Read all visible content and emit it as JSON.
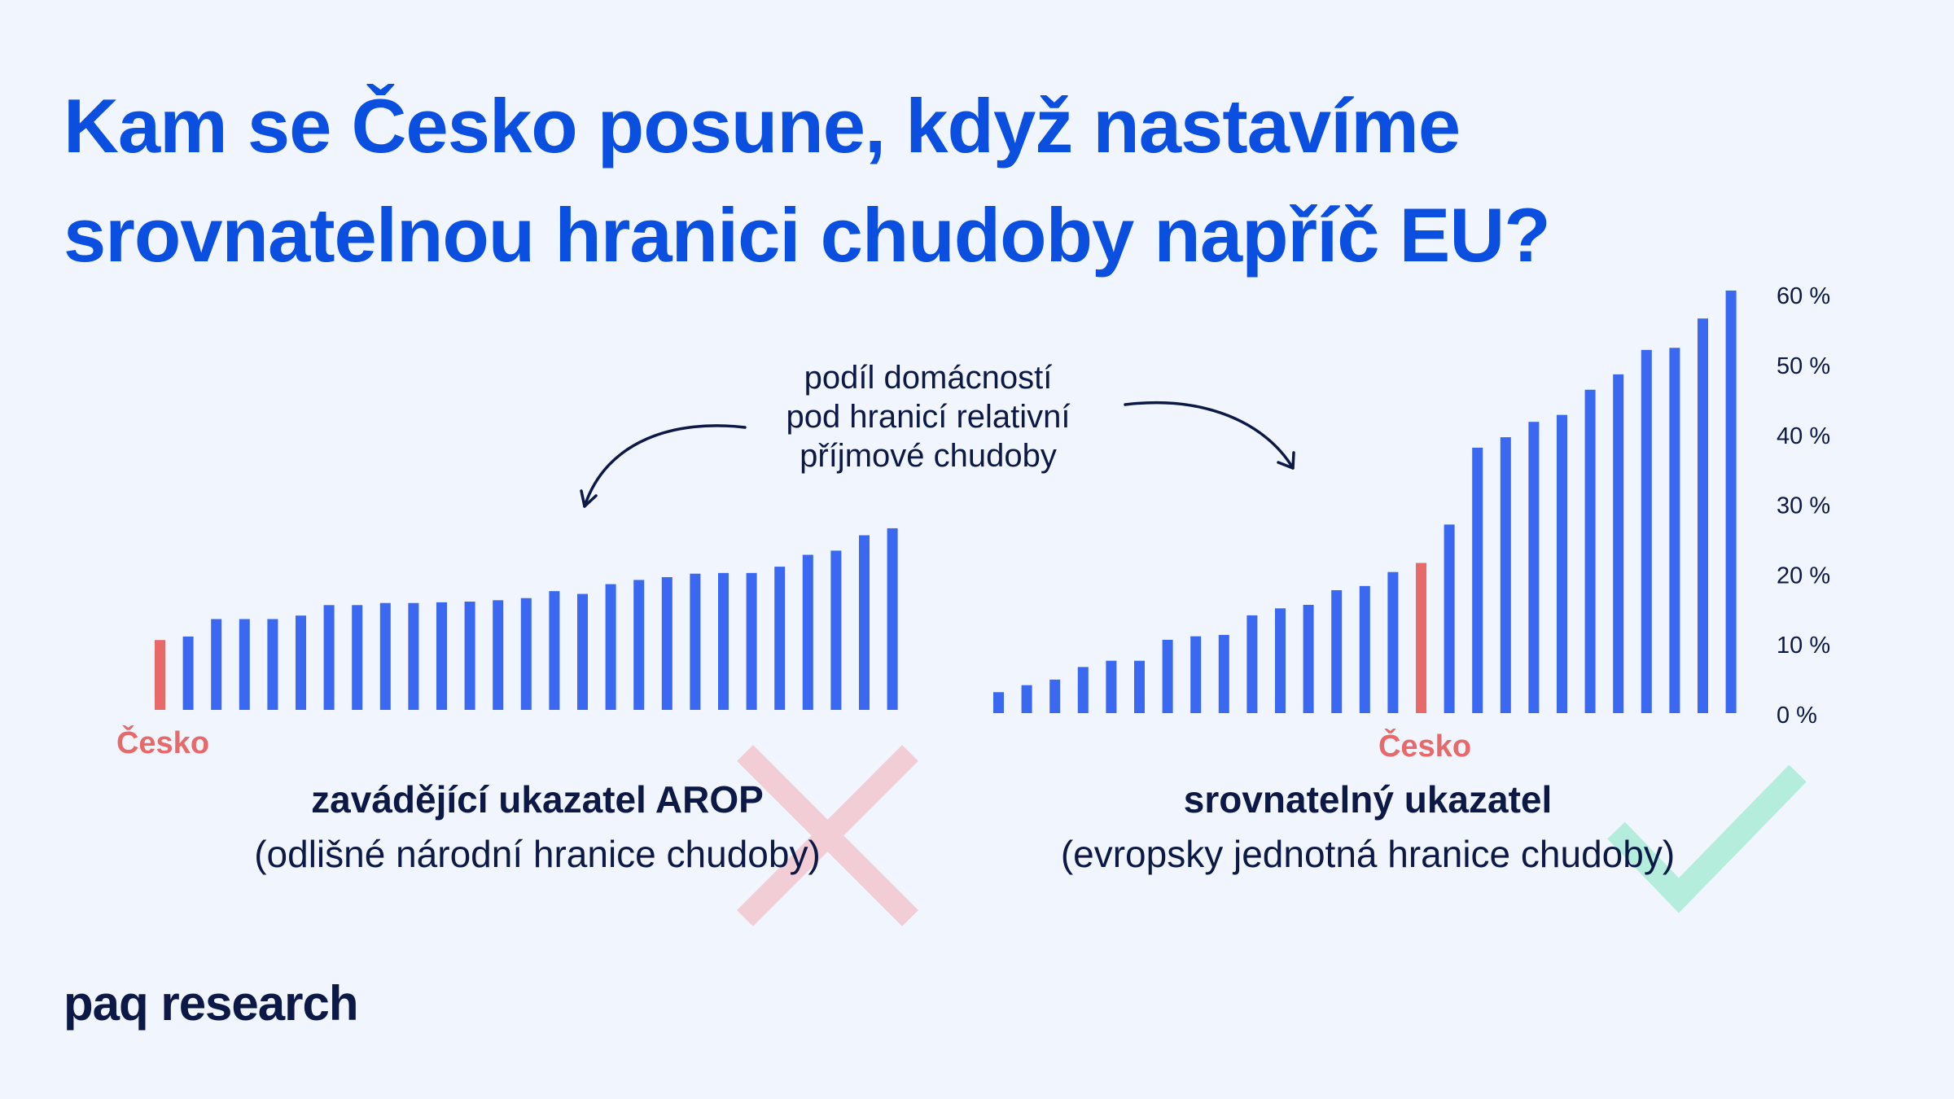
{
  "title": {
    "line1": "Kam se Česko posune, když nastavíme",
    "line2": "srovnatelnou hranici chudoby napříč EU?"
  },
  "annotation": {
    "line1": "podíl domácností",
    "line2": "pod hranicí relativní",
    "line3": "příjmové chudoby"
  },
  "colors": {
    "bar": "#3b68f0",
    "highlight": "#e8696a",
    "title": "#0a4fe0",
    "text": "#0c1845",
    "cross": "#f2cdd6",
    "check": "#b4eddb",
    "background": "#f1f6fe"
  },
  "icons": {
    "left": "cross-icon",
    "right": "check-icon"
  },
  "chart_data": [
    {
      "type": "bar",
      "values": [
        10,
        10.5,
        13,
        13,
        13,
        13.5,
        15,
        15,
        15.3,
        15.3,
        15.4,
        15.5,
        15.7,
        16,
        17,
        16.6,
        18,
        18.6,
        19,
        19.5,
        19.6,
        19.6,
        20.5,
        22.2,
        22.8,
        25,
        26
      ],
      "highlight_index": 0,
      "highlight_label": "Česko",
      "caption_title": "zavádějící ukazatel AROP",
      "caption_subtitle": "(odlišné národní hranice chudoby)",
      "ylim": [
        0,
        60
      ]
    },
    {
      "type": "bar",
      "values": [
        3,
        4,
        4.8,
        6.6,
        7.5,
        7.5,
        10.5,
        11,
        11.2,
        14,
        15,
        15.5,
        17.6,
        18.2,
        20.2,
        21.5,
        27,
        38,
        39.5,
        41.7,
        42.7,
        46.3,
        48.5,
        52,
        52.3,
        56.5,
        60.5
      ],
      "highlight_index": 15,
      "highlight_label": "Česko",
      "caption_title": "srovnatelný ukazatel",
      "caption_subtitle": "(evropsky jednotná hranice chudoby)",
      "ylim": [
        0,
        60
      ],
      "yticks": [
        "0 %",
        "10 %",
        "20 %",
        "30 %",
        "40 %",
        "50 %",
        "60 %"
      ]
    }
  ],
  "logo": "paq research"
}
